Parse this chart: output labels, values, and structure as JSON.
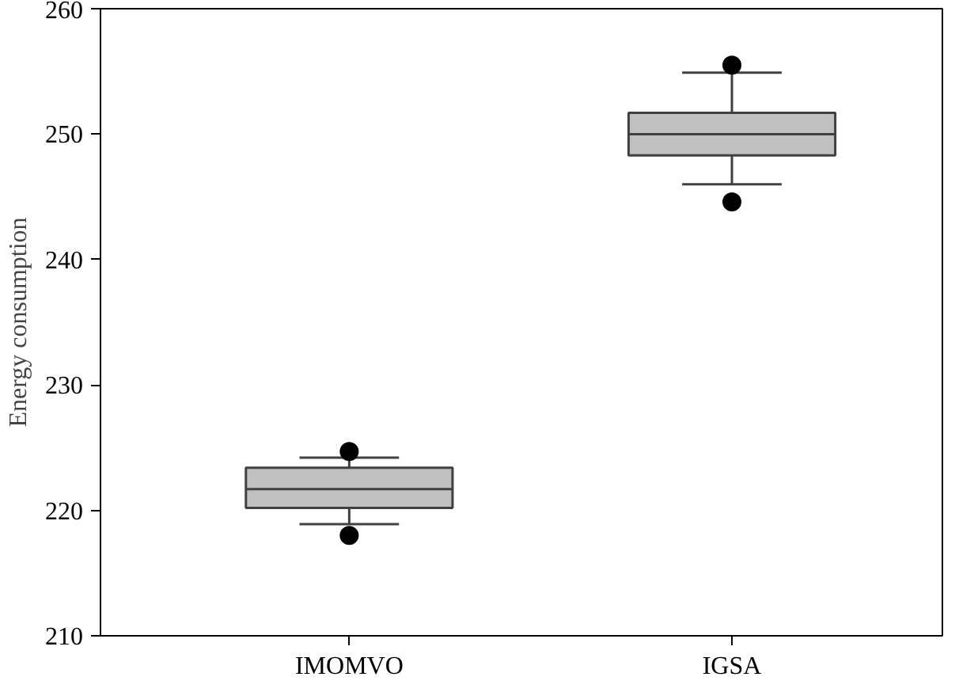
{
  "chart_data": {
    "type": "box",
    "ylabel": "Energy consumption",
    "categories": [
      "IMOMVO",
      "IGSA"
    ],
    "boxes": [
      {
        "low": 218.9,
        "q1": 220.2,
        "median": 221.7,
        "q3": 223.4,
        "high": 224.2,
        "outliers": [
          224.7,
          218.0
        ]
      },
      {
        "low": 246.0,
        "q1": 248.3,
        "median": 250.0,
        "q3": 251.7,
        "high": 254.9,
        "outliers": [
          255.5,
          244.6
        ]
      }
    ],
    "color": "#c0c0c0",
    "ylim": [
      210,
      260
    ],
    "yticks": [
      210,
      220,
      230,
      240,
      250,
      260
    ],
    "grid": false
  }
}
